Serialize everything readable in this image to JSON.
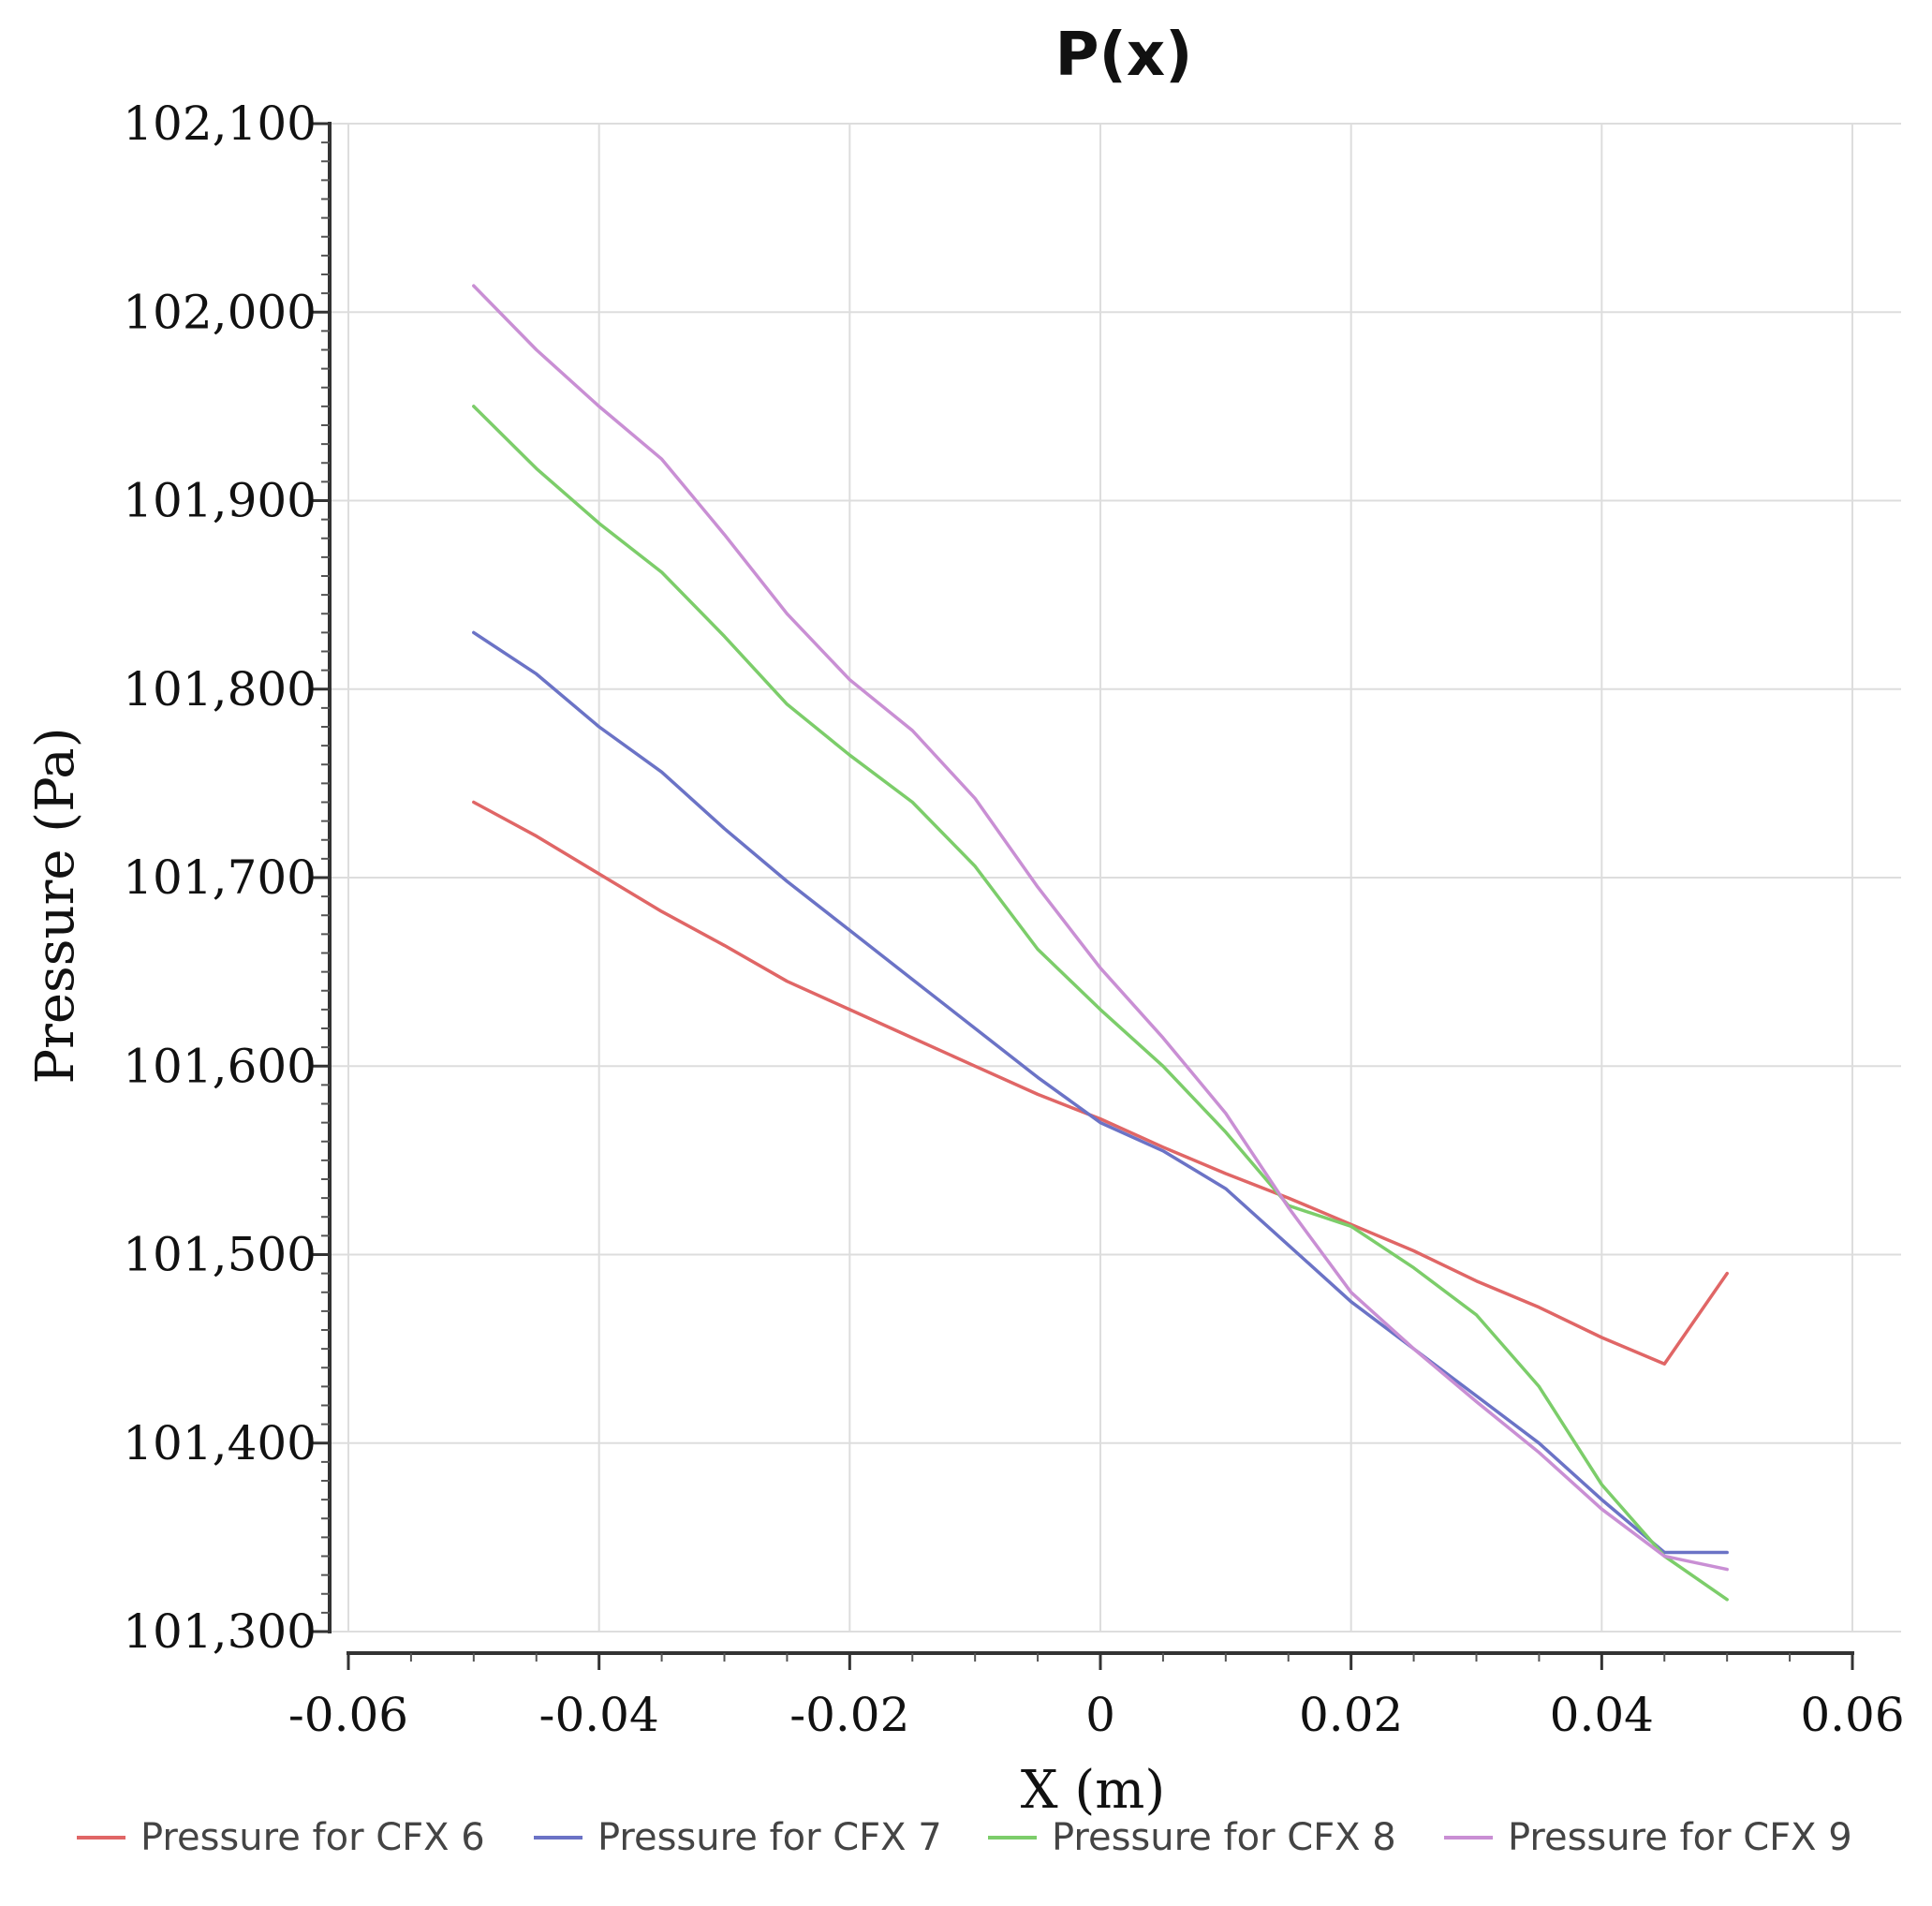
{
  "chart_data": {
    "type": "line",
    "title": "P(x)",
    "xlabel": "X (m)",
    "ylabel": "Pressure (Pa)",
    "xlim": [
      -0.06,
      0.06
    ],
    "ylim": [
      101300,
      102100
    ],
    "xticks": [
      -0.06,
      -0.04,
      -0.02,
      0,
      0.02,
      0.04,
      0.06
    ],
    "xtick_labels": [
      "-0.06",
      "-0.04",
      "-0.02",
      "0",
      "0.02",
      "0.04",
      "0.06"
    ],
    "yticks": [
      101300,
      101400,
      101500,
      101600,
      101700,
      101800,
      101900,
      102000,
      102100
    ],
    "ytick_labels": [
      "101,300",
      "101,400",
      "101,500",
      "101,600",
      "101,700",
      "101,800",
      "101,900",
      "102,000",
      "102,100"
    ],
    "grid": true,
    "legend_position": "bottom",
    "series": [
      {
        "name": "Pressure for CFX 6",
        "color": "#e06666",
        "x": [
          -0.05,
          -0.045,
          -0.04,
          -0.035,
          -0.03,
          -0.025,
          -0.02,
          -0.015,
          -0.01,
          -0.005,
          0,
          0.005,
          0.01,
          0.015,
          0.02,
          0.025,
          0.03,
          0.035,
          0.04,
          0.045,
          0.05
        ],
        "y": [
          101740,
          101722,
          101702,
          101682,
          101664,
          101645,
          101630,
          101615,
          101600,
          101585,
          101572,
          101557,
          101543,
          101530,
          101516,
          101502,
          101486,
          101472,
          101456,
          101442,
          101490
        ]
      },
      {
        "name": "Pressure for CFX 7",
        "color": "#6b73c6",
        "x": [
          -0.05,
          -0.045,
          -0.04,
          -0.035,
          -0.03,
          -0.025,
          -0.02,
          -0.015,
          -0.01,
          -0.005,
          0,
          0.005,
          0.01,
          0.015,
          0.02,
          0.025,
          0.03,
          0.035,
          0.04,
          0.045,
          0.05
        ],
        "y": [
          101830,
          101808,
          101780,
          101756,
          101726,
          101698,
          101672,
          101646,
          101620,
          101594,
          101570,
          101555,
          101535,
          101505,
          101475,
          101450,
          101425,
          101400,
          101370,
          101342,
          101342
        ]
      },
      {
        "name": "Pressure for CFX 8",
        "color": "#7ccd6a",
        "x": [
          -0.05,
          -0.045,
          -0.04,
          -0.035,
          -0.03,
          -0.025,
          -0.02,
          -0.015,
          -0.01,
          -0.005,
          0,
          0.005,
          0.01,
          0.015,
          0.02,
          0.025,
          0.03,
          0.035,
          0.04,
          0.045,
          0.05
        ],
        "y": [
          101950,
          101917,
          101888,
          101862,
          101828,
          101792,
          101765,
          101740,
          101706,
          101662,
          101630,
          101600,
          101565,
          101526,
          101515,
          101493,
          101468,
          101430,
          101378,
          101340,
          101317
        ]
      },
      {
        "name": "Pressure for CFX 9",
        "color": "#c98fd4",
        "x": [
          -0.05,
          -0.045,
          -0.04,
          -0.035,
          -0.03,
          -0.025,
          -0.02,
          -0.015,
          -0.01,
          -0.005,
          0,
          0.005,
          0.01,
          0.015,
          0.02,
          0.025,
          0.03,
          0.035,
          0.04,
          0.045,
          0.05
        ],
        "y": [
          102014,
          101980,
          101950,
          101922,
          101882,
          101840,
          101805,
          101778,
          101742,
          101695,
          101652,
          101615,
          101575,
          101525,
          101480,
          101450,
          101422,
          101395,
          101365,
          101340,
          101333
        ]
      }
    ]
  }
}
